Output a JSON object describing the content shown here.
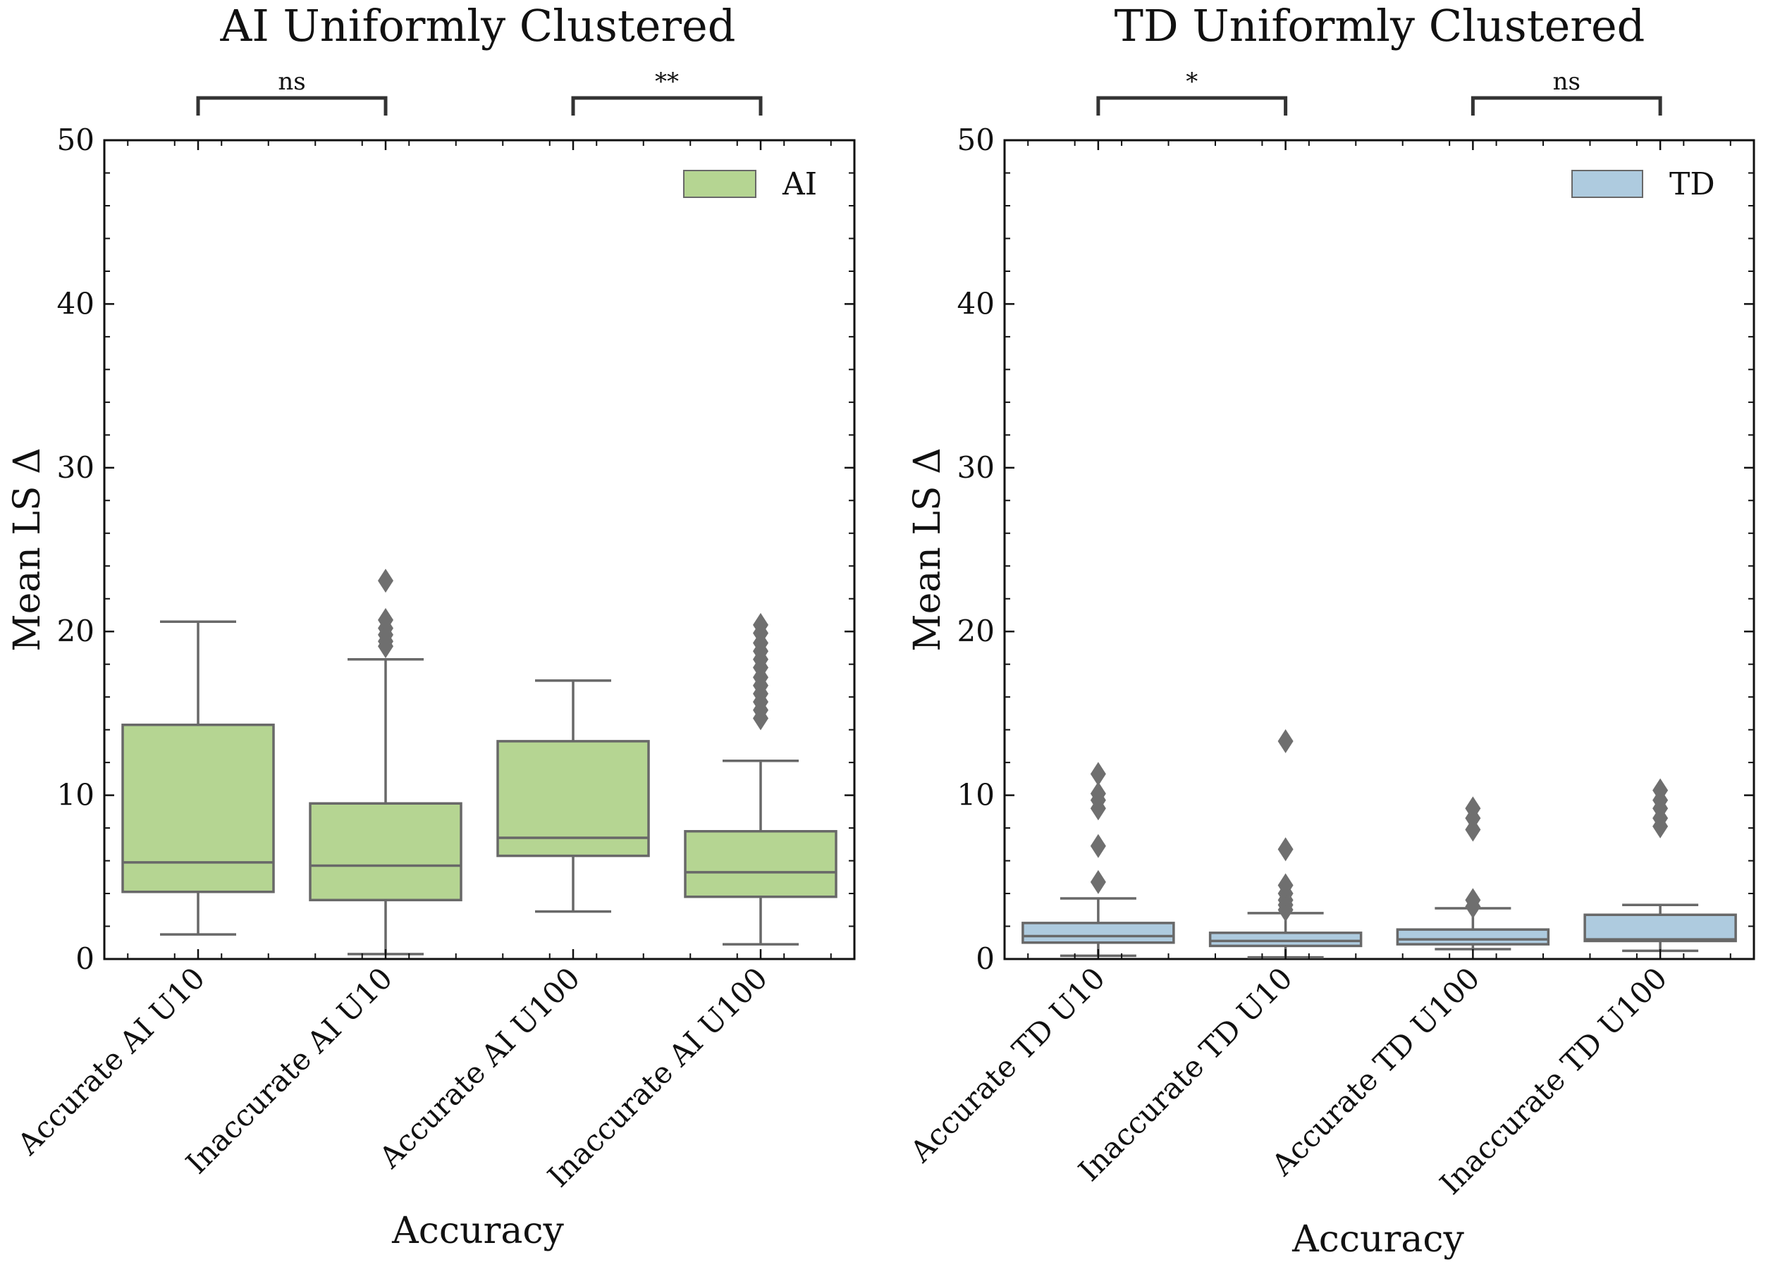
{
  "colors": {
    "ai_fill": "#b5d592",
    "td_fill": "#aecbdf",
    "box_edge": "#686868",
    "outlier": "#6f6f6f",
    "bracket": "#333333",
    "axis": "#111111"
  },
  "chart_data": [
    {
      "type": "box",
      "title": "AI Uniformly Clustered",
      "xlabel": "Accuracy",
      "ylabel": "Mean LS Δ",
      "ylim": [
        0,
        50
      ],
      "yticks": [
        "0",
        "10",
        "20",
        "30",
        "40",
        "50"
      ],
      "grid": false,
      "legend": {
        "label": "AI",
        "placement": "top-right",
        "color_key": "ai_fill"
      },
      "categories": [
        "Accurate AI U10",
        "Inaccurate AI U10",
        "Accurate AI U100",
        "Inaccurate AI U100"
      ],
      "boxes": [
        {
          "whisker_low": 1.5,
          "q1": 4.1,
          "median": 5.9,
          "q3": 14.3,
          "whisker_high": 20.6,
          "outliers": []
        },
        {
          "whisker_low": 0.3,
          "q1": 3.6,
          "median": 5.7,
          "q3": 9.5,
          "whisker_high": 18.3,
          "outliers": [
            19.1,
            19.4,
            19.8,
            20.2,
            20.7,
            23.1
          ]
        },
        {
          "whisker_low": 2.9,
          "q1": 6.3,
          "median": 7.4,
          "q3": 13.3,
          "whisker_high": 17.0,
          "outliers": []
        },
        {
          "whisker_low": 0.9,
          "q1": 3.8,
          "median": 5.3,
          "q3": 7.8,
          "whisker_high": 12.1,
          "outliers": [
            14.7,
            15.2,
            15.7,
            16.2,
            16.7,
            17.2,
            17.8,
            18.3,
            18.8,
            19.3,
            19.9,
            20.4
          ]
        }
      ],
      "significance": [
        {
          "pair": [
            0,
            1
          ],
          "label": "ns"
        },
        {
          "pair": [
            2,
            3
          ],
          "label": "**"
        }
      ]
    },
    {
      "type": "box",
      "title": "TD Uniformly Clustered",
      "xlabel": "Accuracy",
      "ylabel": "Mean LS Δ",
      "ylim": [
        0,
        50
      ],
      "yticks": [
        "0",
        "10",
        "20",
        "30",
        "40",
        "50"
      ],
      "grid": false,
      "legend": {
        "label": "TD",
        "placement": "top-right",
        "color_key": "td_fill"
      },
      "categories": [
        "Accurate TD U10",
        "Inaccurate TD U10",
        "Accurate TD U100",
        "Inaccurate TD U100"
      ],
      "boxes": [
        {
          "whisker_low": 0.2,
          "q1": 1.0,
          "median": 1.4,
          "q3": 2.2,
          "whisker_high": 3.7,
          "outliers": [
            4.7,
            6.9,
            9.2,
            9.7,
            10.1,
            11.3
          ]
        },
        {
          "whisker_low": 0.1,
          "q1": 0.8,
          "median": 1.1,
          "q3": 1.6,
          "whisker_high": 2.8,
          "outliers": [
            3.0,
            3.3,
            3.6,
            4.0,
            4.5,
            6.7,
            13.3
          ]
        },
        {
          "whisker_low": 0.6,
          "q1": 0.9,
          "median": 1.2,
          "q3": 1.8,
          "whisker_high": 3.1,
          "outliers": [
            3.2,
            3.6,
            7.9,
            8.6,
            9.2
          ]
        },
        {
          "whisker_low": 0.5,
          "q1": 1.1,
          "median": 1.2,
          "q3": 2.7,
          "whisker_high": 3.3,
          "outliers": [
            8.1,
            8.6,
            9.2,
            9.7,
            10.3
          ]
        }
      ],
      "significance": [
        {
          "pair": [
            0,
            1
          ],
          "label": "*"
        },
        {
          "pair": [
            2,
            3
          ],
          "label": "ns"
        }
      ]
    }
  ]
}
